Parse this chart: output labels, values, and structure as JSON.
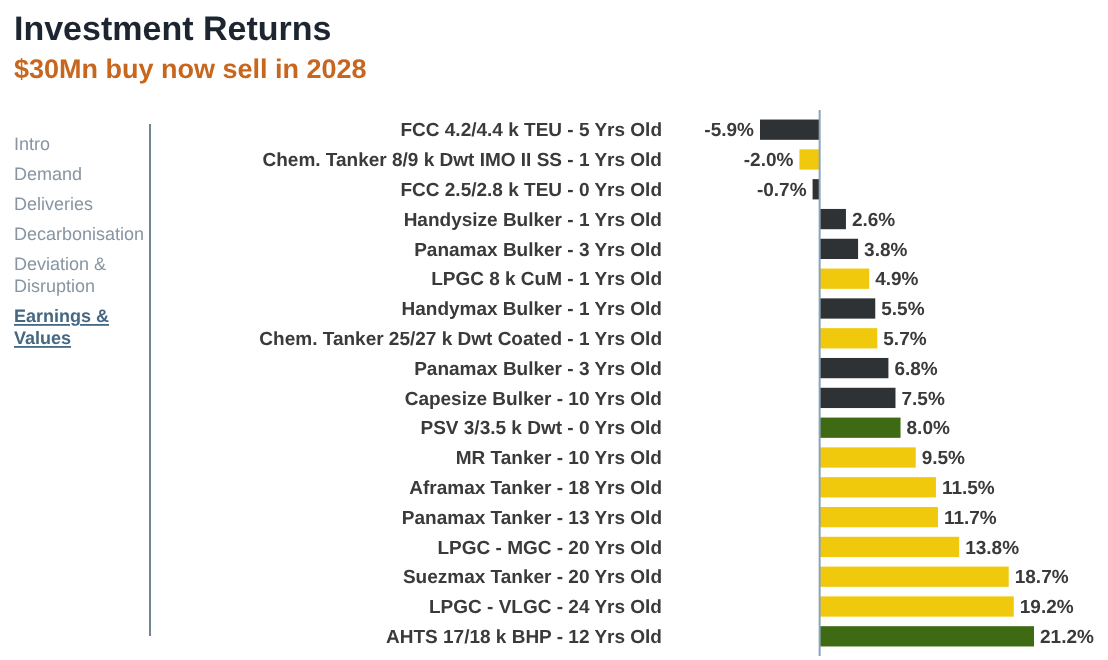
{
  "chart_data": {
    "type": "bar",
    "orientation": "horizontal",
    "title": "Investment Returns",
    "subtitle": "$30Mn buy now sell in 2028",
    "categories": [
      "FCC 4.2/4.4 k TEU - 5 Yrs Old",
      "Chem. Tanker 8/9 k Dwt IMO II SS - 1 Yrs Old",
      "FCC 2.5/2.8 k TEU - 0 Yrs Old",
      "Handysize Bulker - 1 Yrs Old",
      "Panamax Bulker - 3 Yrs Old",
      "LPGC 8 k CuM - 1 Yrs Old",
      "Handymax Bulker - 1 Yrs Old",
      "Chem. Tanker 25/27 k Dwt Coated - 1 Yrs Old",
      "Panamax Bulker - 3 Yrs Old",
      "Capesize Bulker - 10 Yrs Old",
      "PSV 3/3.5 k Dwt - 0 Yrs Old",
      "MR Tanker - 10 Yrs Old",
      "Aframax Tanker - 18 Yrs Old",
      "Panamax Tanker - 13 Yrs Old",
      "LPGC - MGC - 20 Yrs Old",
      "Suezmax Tanker - 20 Yrs Old",
      "LPGC - VLGC - 24 Yrs Old",
      "AHTS 17/18 k BHP - 12 Yrs Old"
    ],
    "values": [
      -5.9,
      -2.0,
      -0.7,
      2.6,
      3.8,
      4.9,
      5.5,
      5.7,
      6.8,
      7.5,
      8.0,
      9.5,
      11.5,
      11.7,
      13.8,
      18.7,
      19.2,
      21.2
    ],
    "value_labels": [
      "-5.9%",
      "-2.0%",
      "-0.7%",
      "2.6%",
      "3.8%",
      "4.9%",
      "5.5%",
      "5.7%",
      "6.8%",
      "7.5%",
      "8.0%",
      "9.5%",
      "11.5%",
      "11.7%",
      "13.8%",
      "18.7%",
      "19.2%",
      "21.2%"
    ],
    "colors": [
      "#2e3234",
      "#f0c80c",
      "#2e3234",
      "#2e3234",
      "#2e3234",
      "#f0c80c",
      "#2e3234",
      "#f0c80c",
      "#2e3234",
      "#2e3234",
      "#3f6a14",
      "#f0c80c",
      "#f0c80c",
      "#f0c80c",
      "#f0c80c",
      "#f0c80c",
      "#f0c80c",
      "#3f6a14"
    ],
    "ref_lines": [
      {
        "axis": "x",
        "value": 0,
        "color": "#8aa3b8"
      }
    ],
    "annotations": [
      "Intro",
      "Demand",
      "Deliveries",
      "Decarbonisation",
      "Deviation & Disruption",
      "Earnings & Values"
    ]
  }
}
